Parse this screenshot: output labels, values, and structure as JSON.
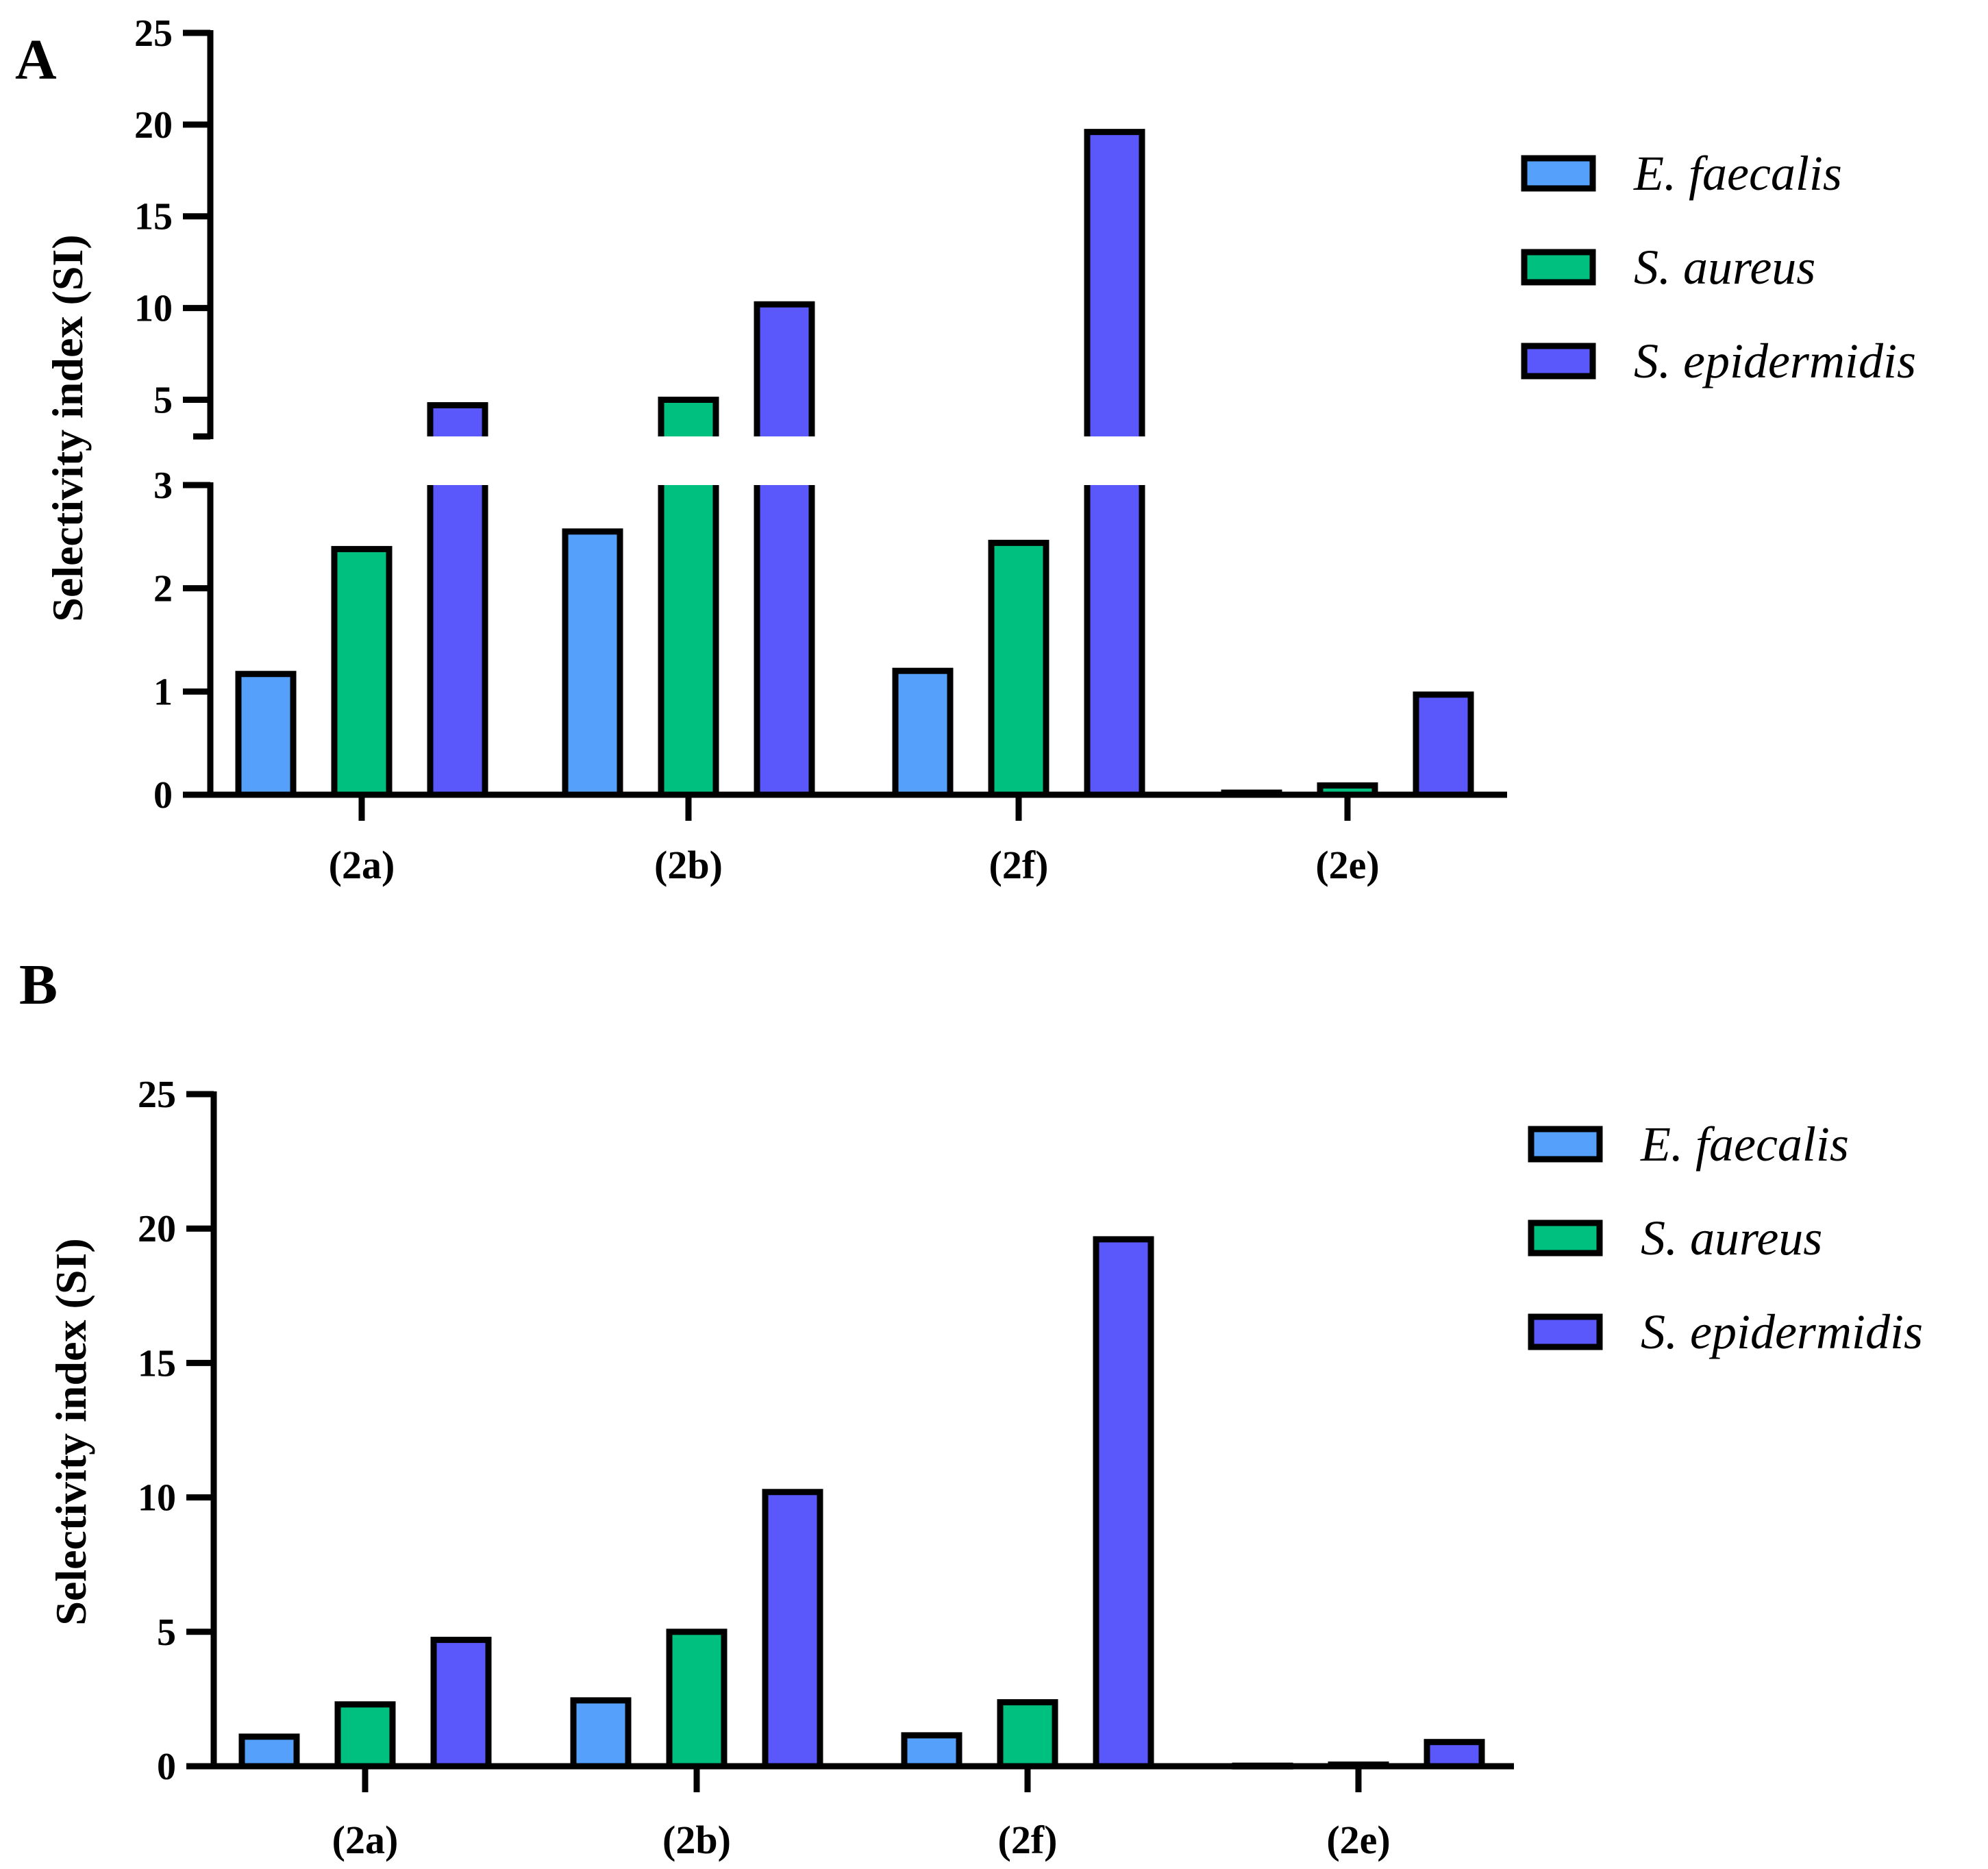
{
  "panels": [
    {
      "letter": "A",
      "chart_data": {
        "type": "bar",
        "title": "",
        "xlabel": "",
        "ylabel": "Selectivity index (SI)",
        "categories": [
          "(2a)",
          "(2b)",
          "(2f)",
          "(2e)"
        ],
        "series": [
          {
            "name": "E. faecalis",
            "color": "#55a0fb",
            "values": [
              1.17,
              2.55,
              1.2,
              0.02
            ]
          },
          {
            "name": "S. aureus",
            "color": "#00c07f",
            "values": [
              2.38,
              5.0,
              2.44,
              0.09
            ]
          },
          {
            "name": "S. epidermidis",
            "color": "#5a57fb",
            "values": [
              4.7,
              10.2,
              19.6,
              0.97
            ]
          }
        ],
        "y_axis_break": {
          "lower_segment": [
            0,
            3
          ],
          "upper_segment": [
            3,
            25
          ]
        },
        "lower_ticks": [
          0,
          1,
          2,
          3
        ],
        "upper_ticks": [
          5,
          10,
          15,
          20,
          25
        ],
        "legend_position": "right",
        "grid": false
      }
    },
    {
      "letter": "B",
      "chart_data": {
        "type": "bar",
        "title": "",
        "xlabel": "",
        "ylabel": "Selectivity index (SI)",
        "categories": [
          "(2a)",
          "(2b)",
          "(2f)",
          "(2e)"
        ],
        "series": [
          {
            "name": "E. faecalis",
            "color": "#55a0fb",
            "values": [
              1.1,
              2.45,
              1.15,
              0.02
            ]
          },
          {
            "name": "S. aureus",
            "color": "#00c07f",
            "values": [
              2.3,
              5.0,
              2.38,
              0.06
            ]
          },
          {
            "name": "S. epidermidis",
            "color": "#5a57fb",
            "values": [
              4.7,
              10.2,
              19.6,
              0.9
            ]
          }
        ],
        "ylim": [
          0,
          25
        ],
        "ticks": [
          0,
          5,
          10,
          15,
          20,
          25
        ],
        "legend_position": "right",
        "grid": false
      }
    }
  ]
}
